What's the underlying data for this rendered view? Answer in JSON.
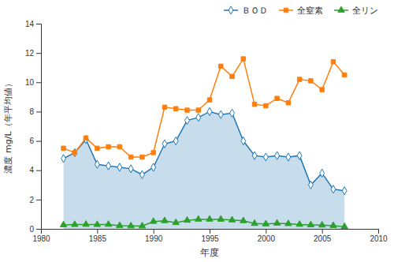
{
  "chart_data": {
    "type": "line",
    "xlabel": "年度",
    "ylabel": "濃度  mg/L（年平均値）",
    "x": [
      1982,
      1983,
      1984,
      1985,
      1986,
      1987,
      1988,
      1989,
      1990,
      1991,
      1992,
      1993,
      1994,
      1995,
      1996,
      1997,
      1998,
      1999,
      2000,
      2001,
      2002,
      2003,
      2004,
      2005,
      2006,
      2007
    ],
    "series": [
      {
        "name": "ＢＯＤ",
        "type": "area",
        "marker": "diamond",
        "values": [
          4.8,
          5.2,
          6.1,
          4.4,
          4.3,
          4.2,
          4.1,
          3.7,
          4.2,
          5.8,
          6.0,
          7.4,
          7.6,
          8.0,
          7.8,
          7.9,
          6.0,
          5.0,
          4.9,
          5.0,
          4.9,
          5.0,
          3.0,
          3.8,
          2.7,
          2.6
        ]
      },
      {
        "name": "全窒素",
        "type": "line",
        "marker": "square",
        "values": [
          5.5,
          5.2,
          6.2,
          5.5,
          5.6,
          5.6,
          4.9,
          4.9,
          5.2,
          8.3,
          8.2,
          8.1,
          8.1,
          8.8,
          11.1,
          10.4,
          11.6,
          8.5,
          8.4,
          8.9,
          8.6,
          10.2,
          10.1,
          9.5,
          11.4,
          10.5
        ]
      },
      {
        "name": "全リン",
        "type": "line",
        "marker": "triangle",
        "values": [
          0.27,
          0.29,
          0.3,
          0.29,
          0.3,
          0.22,
          0.2,
          0.19,
          0.5,
          0.55,
          0.42,
          0.58,
          0.65,
          0.65,
          0.65,
          0.6,
          0.55,
          0.36,
          0.33,
          0.38,
          0.35,
          0.3,
          0.27,
          0.25,
          0.22,
          0.15
        ]
      }
    ],
    "xlim": [
      1980,
      2010
    ],
    "ylim": [
      0,
      14
    ],
    "xticks": [
      1980,
      1985,
      1990,
      1995,
      2000,
      2005,
      2010
    ],
    "yticks": [
      0,
      2,
      4,
      6,
      8,
      10,
      12,
      14
    ],
    "grid": false,
    "legend": "upper right"
  }
}
